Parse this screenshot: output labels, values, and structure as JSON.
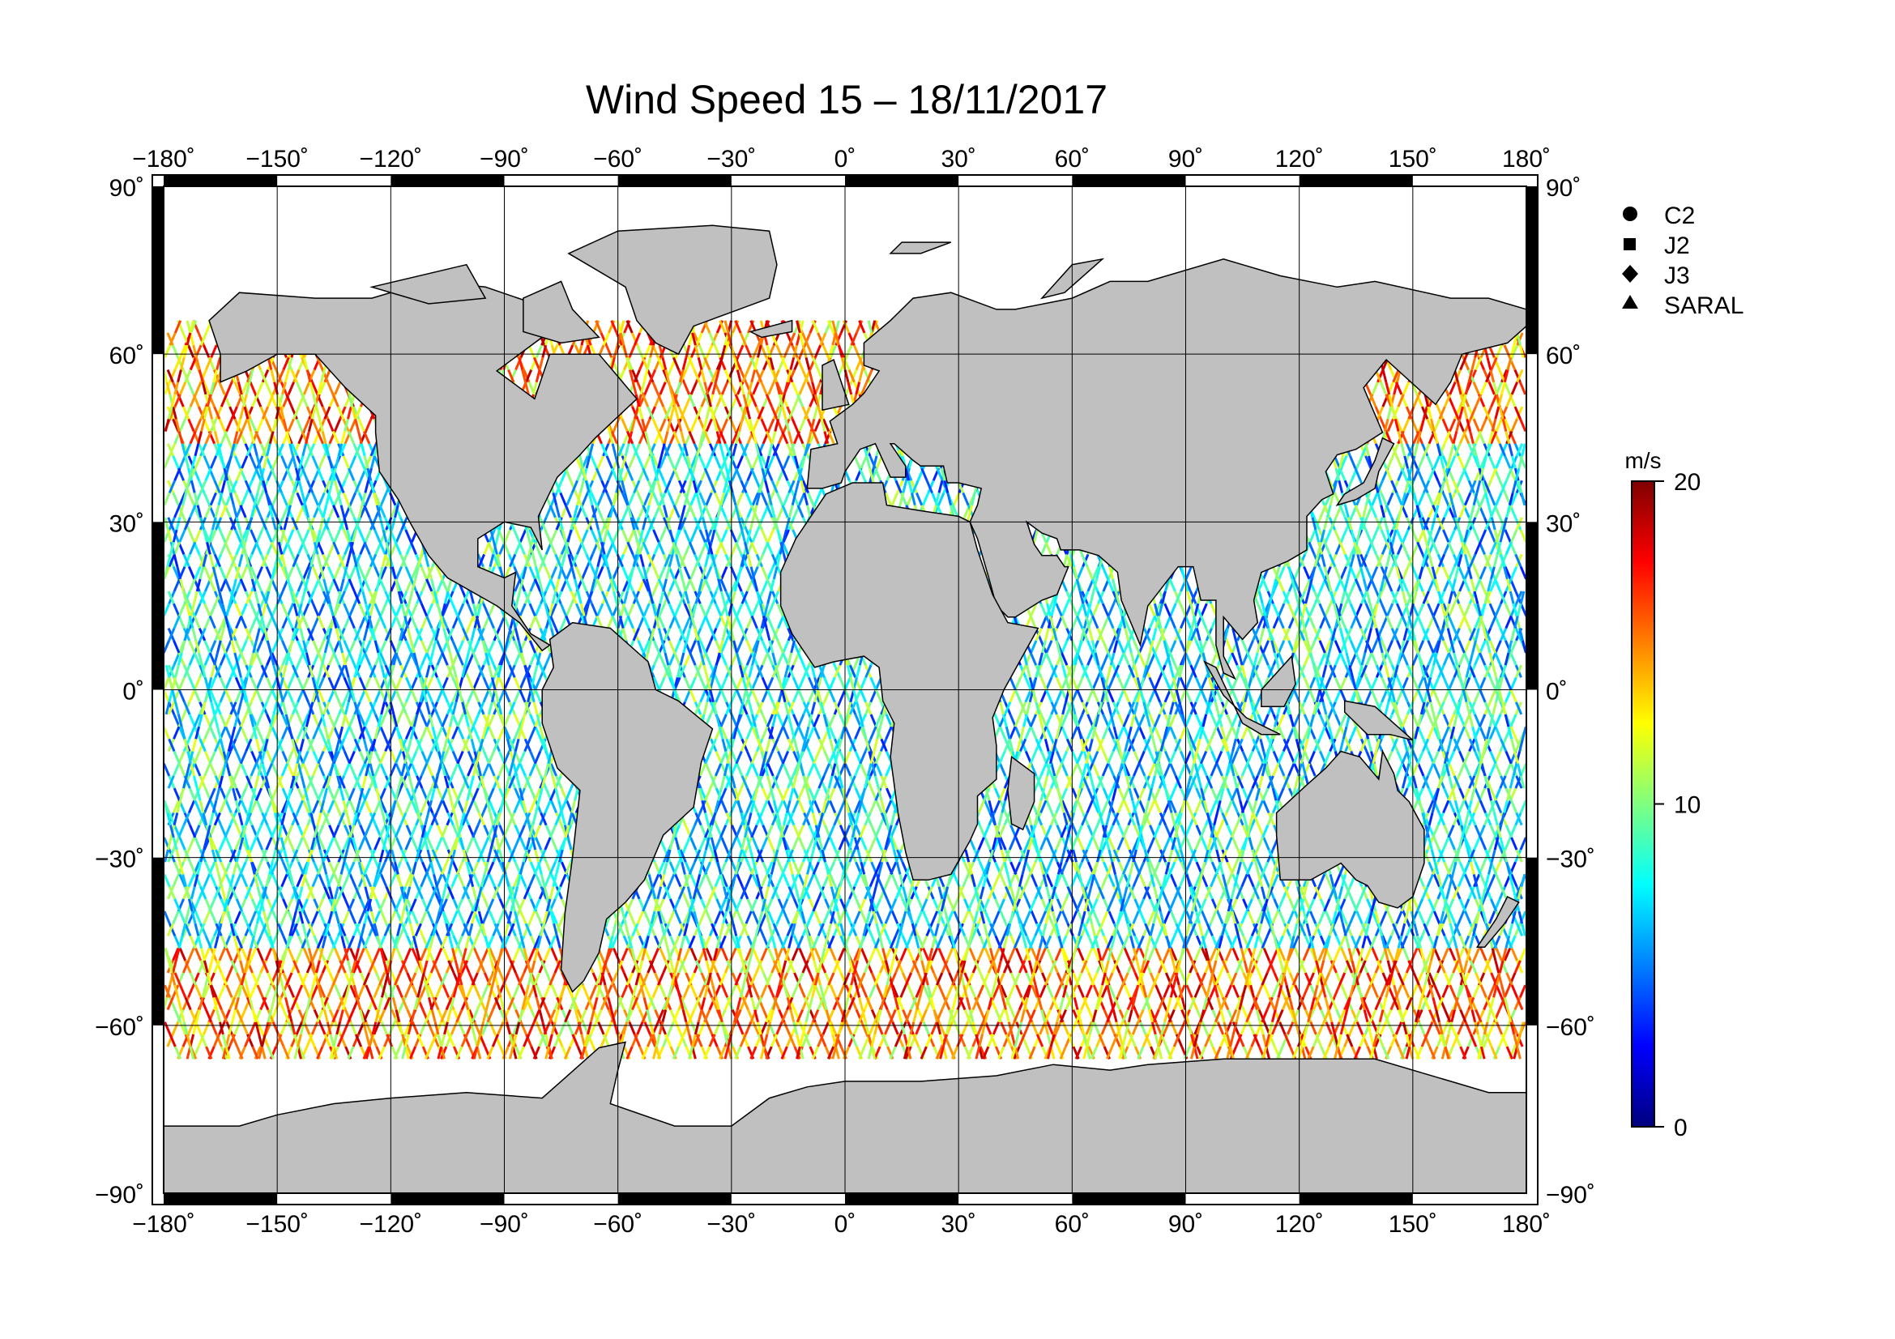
{
  "title": "Wind Speed 15 – 18/11/2017",
  "degree_mark": "˚",
  "map": {
    "projection": "equirectangular",
    "lon_range": [
      -180,
      180
    ],
    "lat_range": [
      -90,
      90
    ],
    "lon_ticks": [
      -180,
      -150,
      -120,
      -90,
      -60,
      -30,
      0,
      30,
      60,
      90,
      120,
      150,
      180
    ],
    "lat_ticks": [
      90,
      60,
      30,
      0,
      -30,
      -60,
      -90
    ],
    "grid": true,
    "land_color": "#c0c0c0",
    "ocean_color": "#ffffff",
    "track_coverage_lat": [
      -66,
      66
    ]
  },
  "legend": {
    "placement": "top-right",
    "items": [
      {
        "symbol": "circle",
        "label": "C2"
      },
      {
        "symbol": "square",
        "label": "J2"
      },
      {
        "symbol": "diamond",
        "label": "J3"
      },
      {
        "symbol": "triangle",
        "label": "SARAL"
      }
    ]
  },
  "colorbar": {
    "unit": "m/s",
    "min": 0,
    "max": 20,
    "tick_values": [
      0,
      10,
      20
    ],
    "tick_labels": [
      "0",
      "10",
      "20"
    ],
    "colormap": "jet"
  }
}
